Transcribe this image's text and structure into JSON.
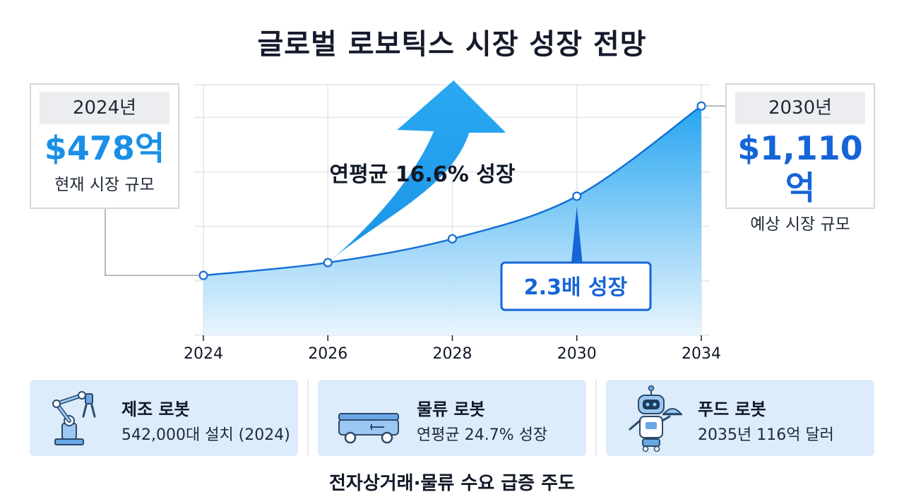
{
  "title": "글로벌 로보틱스 시장 성장 전망",
  "start_stat": {
    "year": "2024년",
    "value": "$478억",
    "desc": "현재 시장 규모"
  },
  "end_stat": {
    "year": "2030년",
    "value": "$1,110억",
    "desc": "예상 시장 규모"
  },
  "cagr_label": "연평균 16.6% 성장",
  "growth_label": "2.3배 성장",
  "colors": {
    "area_top": "#1aa0f0",
    "area_bottom": "#e6f4fd",
    "line": "#1470d6",
    "arrow": "#12a0ee",
    "accent": "#1565d8"
  },
  "chart_data": {
    "type": "area",
    "x": [
      "2024",
      "2026",
      "2028",
      "2030",
      "2034"
    ],
    "values": [
      478,
      580,
      770,
      1110,
      1830
    ],
    "ylim": [
      0,
      2000
    ],
    "grid": true,
    "annotations": [
      "연평균 16.6% 성장",
      "2.3배 성장"
    ]
  },
  "cards": [
    {
      "name": "제조 로봇",
      "detail": "542,000대 설치 (2024)",
      "icon": "robot-arm-icon"
    },
    {
      "name": "물류 로봇",
      "detail": "연평균 24.7% 성장",
      "icon": "logistics-cart-icon"
    },
    {
      "name": "푸드 로봇",
      "detail": "2035년 116억 달러",
      "icon": "service-robot-icon"
    }
  ],
  "footer": "전자상거래·물류 수요 급증 주도"
}
